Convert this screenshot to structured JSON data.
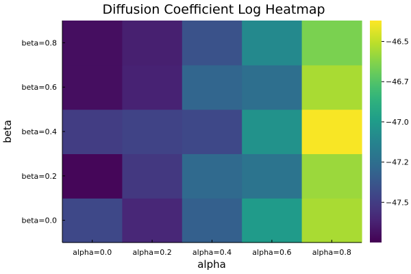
{
  "chart_data": {
    "type": "heatmap",
    "title": "Diffusion Coefficient Log Heatmap",
    "xlabel": "alpha",
    "ylabel": "beta",
    "x_categories": [
      "alpha=0.0",
      "alpha=0.2",
      "alpha=0.4",
      "alpha=0.6",
      "alpha=0.8"
    ],
    "y_categories": [
      "beta=0.0",
      "beta=0.2",
      "beta=0.4",
      "beta=0.6",
      "beta=0.8"
    ],
    "values": [
      [
        -47.45,
        -47.6,
        -47.33,
        -47.0,
        -46.55
      ],
      [
        -47.73,
        -47.52,
        -47.28,
        -47.22,
        -46.58
      ],
      [
        -47.5,
        -47.47,
        -47.45,
        -47.05,
        -46.38
      ],
      [
        -47.7,
        -47.62,
        -47.3,
        -47.25,
        -46.55
      ],
      [
        -47.7,
        -47.63,
        -47.4,
        -47.1,
        -46.65
      ]
    ],
    "colorbar": {
      "colormap": "viridis",
      "range": [
        -47.75,
        -46.37
      ],
      "ticks": [
        -47.5,
        -47.25,
        -47.0,
        -46.75,
        -46.5
      ],
      "tick_labels": [
        "−47.5",
        "−47.2",
        "−47.0",
        "−46.7",
        "−46.5"
      ]
    },
    "grid": false,
    "legend": "colorbar-right"
  }
}
